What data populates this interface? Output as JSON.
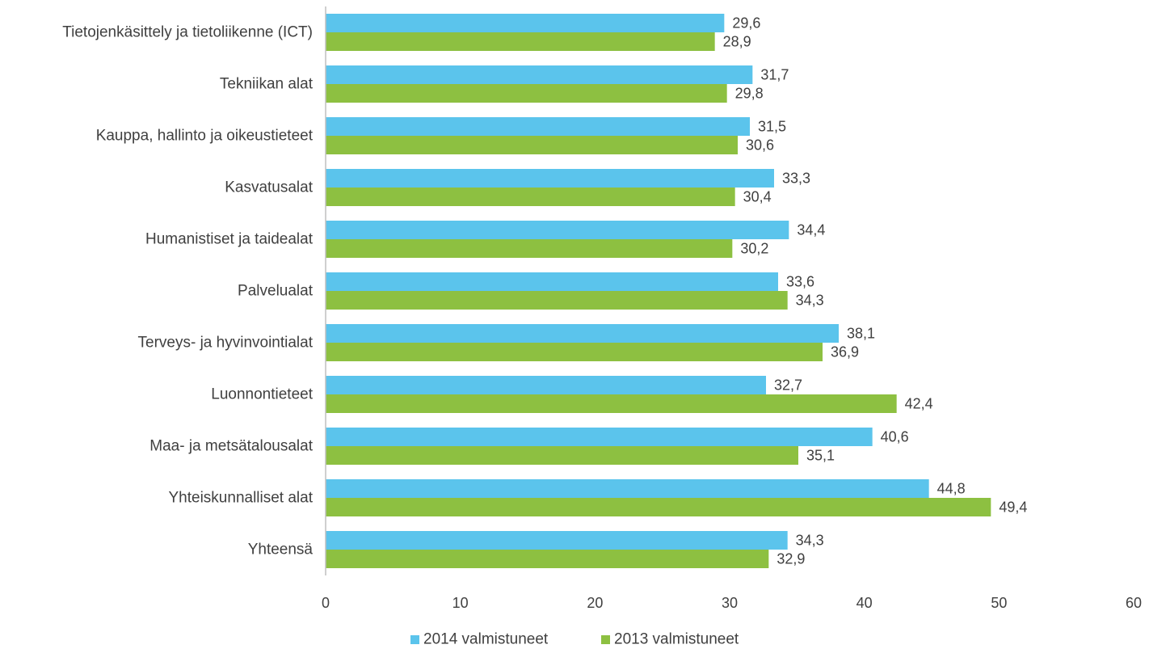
{
  "chart_data": {
    "type": "bar",
    "orientation": "horizontal",
    "categories": [
      "Tietojenkäsittely ja tietoliikenne (ICT)",
      "Tekniikan alat",
      "Kauppa, hallinto ja oikeustieteet",
      "Kasvatusalat",
      "Humanistiset ja taidealat",
      "Palvelualat",
      "Terveys- ja hyvinvointialat",
      "Luonnontieteet",
      "Maa- ja metsätalousalat",
      "Yhteiskunnalliset alat",
      "Yhteensä"
    ],
    "series": [
      {
        "name": "2014 valmistuneet",
        "color": "#5bc4ec",
        "values": [
          29.6,
          31.7,
          31.5,
          33.3,
          34.4,
          33.6,
          38.1,
          32.7,
          40.6,
          44.8,
          34.3
        ],
        "labels": [
          "29,6",
          "31,7",
          "31,5",
          "33,3",
          "34,4",
          "33,6",
          "38,1",
          "32,7",
          "40,6",
          "44,8",
          "34,3"
        ]
      },
      {
        "name": "2013 valmistuneet",
        "color": "#8dc041",
        "values": [
          28.9,
          29.8,
          30.6,
          30.4,
          30.2,
          34.3,
          36.9,
          42.4,
          35.1,
          49.4,
          32.9
        ],
        "labels": [
          "28,9",
          "29,8",
          "30,6",
          "30,4",
          "30,2",
          "34,3",
          "36,9",
          "42,4",
          "35,1",
          "49,4",
          "32,9"
        ]
      }
    ],
    "xlim": [
      0,
      60
    ],
    "xticks": [
      0,
      10,
      20,
      30,
      40,
      50,
      60
    ],
    "title": "",
    "xlabel": "",
    "ylabel": "",
    "grid": false,
    "legend": "bottom"
  }
}
